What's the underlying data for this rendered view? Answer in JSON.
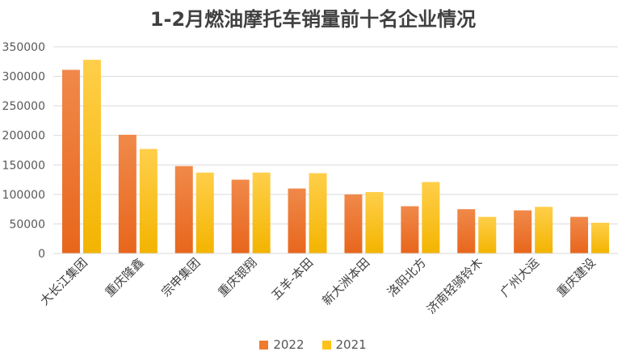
{
  "chart_data": {
    "type": "bar",
    "title": "1-2月燃油摩托车销量前十名企业情况",
    "categories": [
      "大长江集团",
      "重庆隆鑫",
      "宗申集团",
      "重庆银翔",
      "五羊-本田",
      "新大洲本田",
      "洛阳北方",
      "济南轻骑铃木",
      "广州大运",
      "重庆建设"
    ],
    "series": [
      {
        "name": "2022",
        "color": "#ef7b2f",
        "values": [
          311000,
          201000,
          148000,
          125000,
          110000,
          100000,
          80000,
          75000,
          73000,
          62000
        ]
      },
      {
        "name": "2021",
        "color": "#ffc21a",
        "values": [
          328000,
          177000,
          137000,
          137000,
          136000,
          104000,
          121000,
          62000,
          79000,
          52000
        ]
      }
    ],
    "ylim": [
      0,
      350000
    ],
    "yticks": [
      "0",
      "50000",
      "100000",
      "150000",
      "200000",
      "250000",
      "300000",
      "350000"
    ],
    "grid": true,
    "legend_position": "bottom"
  }
}
